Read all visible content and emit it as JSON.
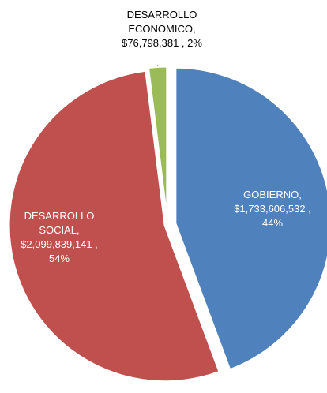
{
  "chart_data": {
    "type": "pie",
    "categories": [
      "GOBIERNO,",
      "DESARROLLO SOCIAL,",
      "DESARROLLO ECONOMICO,"
    ],
    "values": [
      1733606532,
      2099839141,
      76798381
    ],
    "value_labels": [
      "$1,733,606,532 ,",
      "$2,099,839,141 ,",
      "$76,798,381 , 2%"
    ],
    "percents": [
      44,
      54,
      2
    ],
    "percent_labels": [
      "44%",
      "54%",
      null
    ],
    "colors": [
      "#4f81bd",
      "#c0504d",
      "#9bbb59"
    ]
  }
}
